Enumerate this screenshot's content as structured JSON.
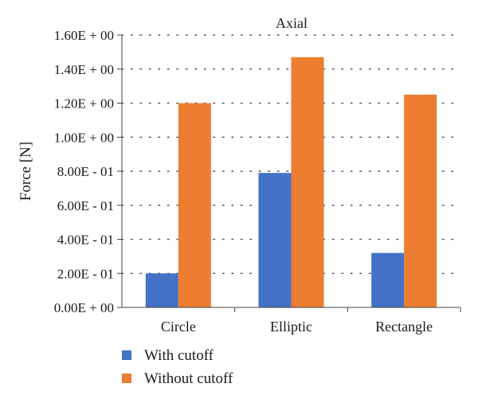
{
  "chart_data": {
    "type": "bar",
    "title": "Axial",
    "xlabel": "",
    "ylabel": "Force [N]",
    "categories": [
      "Circle",
      "Elliptic",
      "Rectangle"
    ],
    "series": [
      {
        "name": "With cutoff",
        "color": "#4472C4",
        "values": [
          0.2,
          0.79,
          0.32
        ]
      },
      {
        "name": "Without cutoff",
        "color": "#ED7D31",
        "values": [
          1.2,
          1.47,
          1.25
        ]
      }
    ],
    "ylim": [
      0,
      1.6
    ],
    "yticks": [
      0,
      0.2,
      0.4,
      0.6,
      0.8,
      1.0,
      1.2,
      1.4,
      1.6
    ],
    "ytick_labels": [
      "0.00E + 00",
      "2.00E - 01",
      "4.00E - 01",
      "6.00E - 01",
      "8.00E - 01",
      "1.00E + 00",
      "1.20E + 00",
      "1.40E + 00",
      "1.60E + 00"
    ],
    "grid": "dotted horizontal",
    "legend_position": "bottom-left"
  }
}
